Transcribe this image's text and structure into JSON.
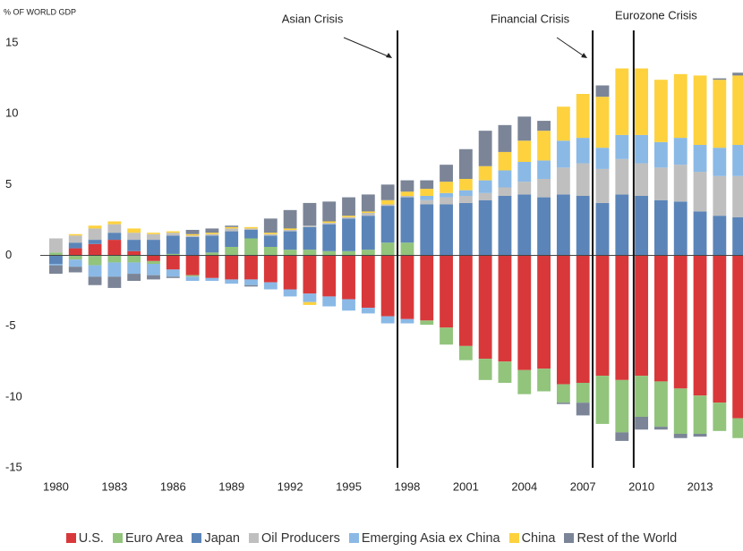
{
  "chart_data": {
    "type": "stacked_bar",
    "y_label": "% OF WORLD GDP",
    "x": [
      1980,
      1981,
      1982,
      1983,
      1984,
      1985,
      1986,
      1987,
      1988,
      1989,
      1990,
      1991,
      1992,
      1993,
      1994,
      1995,
      1996,
      1997,
      1998,
      1999,
      2000,
      2001,
      2002,
      2003,
      2004,
      2005,
      2006,
      2007,
      2008,
      2009,
      2010,
      2011,
      2012,
      2013,
      2014,
      2015
    ],
    "xlim": [
      1979.2,
      2015.2
    ],
    "xticks": [
      1980,
      1983,
      1986,
      1989,
      1992,
      1995,
      1998,
      2001,
      2004,
      2007,
      2010,
      2013
    ],
    "ylim": [
      -15,
      15
    ],
    "yticks": [
      -15,
      -10,
      -5,
      0,
      5,
      10,
      15
    ],
    "series": [
      {
        "name": "U.S.",
        "color": "#d9383a",
        "values": [
          0,
          0.5,
          0.8,
          1.1,
          0.3,
          -0.4,
          -1.0,
          -1.4,
          -1.6,
          -1.7,
          -1.7,
          -1.9,
          -2.4,
          -2.7,
          -2.9,
          -3.1,
          -3.7,
          -4.3,
          -4.5,
          -4.6,
          -5.1,
          -6.4,
          -7.3,
          -7.5,
          -8.1,
          -8.0,
          -9.1,
          -9.0,
          -8.5,
          -8.8,
          -8.5,
          -8.9,
          -9.4,
          -9.9,
          -10.4,
          -11.5
        ]
      },
      {
        "name": "Euro Area",
        "color": "#92c47c",
        "values": [
          0.2,
          -0.3,
          -0.7,
          -0.5,
          -0.5,
          -0.2,
          0.1,
          -0.1,
          0.2,
          0.6,
          1.2,
          0.6,
          0.4,
          0.4,
          0.3,
          0.3,
          0.4,
          0.9,
          0.9,
          -0.3,
          -1.2,
          -1.0,
          -1.5,
          -1.5,
          -1.7,
          -1.6,
          -1.3,
          -1.4,
          -3.4,
          -3.7,
          -2.9,
          -3.2,
          -3.2,
          -2.7,
          -2.0,
          -1.4
        ]
      },
      {
        "name": "Japan",
        "color": "#5b85b8",
        "values": [
          -0.6,
          0.4,
          0.3,
          0.5,
          0.8,
          1.1,
          1.3,
          1.3,
          1.2,
          1.1,
          0.6,
          0.8,
          1.3,
          1.6,
          1.9,
          2.3,
          2.4,
          2.6,
          3.2,
          3.6,
          3.6,
          3.7,
          3.9,
          4.2,
          4.3,
          4.1,
          4.3,
          4.2,
          3.7,
          4.3,
          4.2,
          3.9,
          3.8,
          3.1,
          2.8,
          2.7
        ]
      },
      {
        "name": "Oil Producers",
        "color": "#bfbfbf",
        "values": [
          1.0,
          0.5,
          0.8,
          0.6,
          0.5,
          0.4,
          0.2,
          0.1,
          0.1,
          0.2,
          0.1,
          0.1,
          0.1,
          0.1,
          0.1,
          0.1,
          0.2,
          0.1,
          0.1,
          0.3,
          0.5,
          0.5,
          0.5,
          0.6,
          0.9,
          1.3,
          1.9,
          2.3,
          2.4,
          2.5,
          2.3,
          2.3,
          2.6,
          2.8,
          2.8,
          2.9
        ]
      },
      {
        "name": "Emerging Asia ex China",
        "color": "#8ab9e6",
        "values": [
          -0.1,
          -0.5,
          -0.8,
          -1.0,
          -0.8,
          -0.8,
          -0.5,
          -0.3,
          -0.2,
          -0.3,
          -0.4,
          -0.5,
          -0.5,
          -0.6,
          -0.7,
          -0.8,
          -0.4,
          -0.5,
          -0.3,
          0.3,
          0.3,
          0.4,
          0.9,
          1.2,
          1.4,
          1.3,
          1.9,
          1.8,
          1.5,
          1.7,
          2.0,
          1.8,
          1.9,
          1.9,
          2.0,
          2.2
        ]
      },
      {
        "name": "China",
        "color": "#fdd23e",
        "values": [
          0,
          0.1,
          0.2,
          0.2,
          0.3,
          0.1,
          0.1,
          0.1,
          0.1,
          0.1,
          0.1,
          0.1,
          0.1,
          -0.2,
          0.1,
          0.1,
          0.1,
          0.3,
          0.3,
          0.5,
          0.8,
          0.8,
          1.0,
          1.3,
          1.5,
          2.1,
          2.4,
          3.1,
          3.6,
          4.7,
          4.7,
          4.4,
          4.5,
          4.9,
          4.8,
          4.9
        ]
      },
      {
        "name": "Rest of the World",
        "color": "#7b8597",
        "values": [
          -0.6,
          -0.4,
          -0.6,
          -0.8,
          -0.5,
          -0.3,
          -0.1,
          0.3,
          0.3,
          0.1,
          -0.1,
          1.0,
          1.3,
          1.6,
          1.4,
          1.3,
          1.2,
          1.1,
          0.8,
          0.6,
          1.2,
          2.1,
          2.5,
          1.9,
          1.7,
          0.7,
          -0.1,
          -0.9,
          0.8,
          -0.6,
          -0.9,
          -0.2,
          -0.3,
          -0.2,
          0.1,
          0.2
        ]
      }
    ],
    "annotations": [
      {
        "text": "Asian Crisis",
        "x": 1997.5
      },
      {
        "text": "Financial Crisis",
        "x": 2007.5
      },
      {
        "text": "Eurozone Crisis",
        "x": 2009.6
      }
    ]
  }
}
